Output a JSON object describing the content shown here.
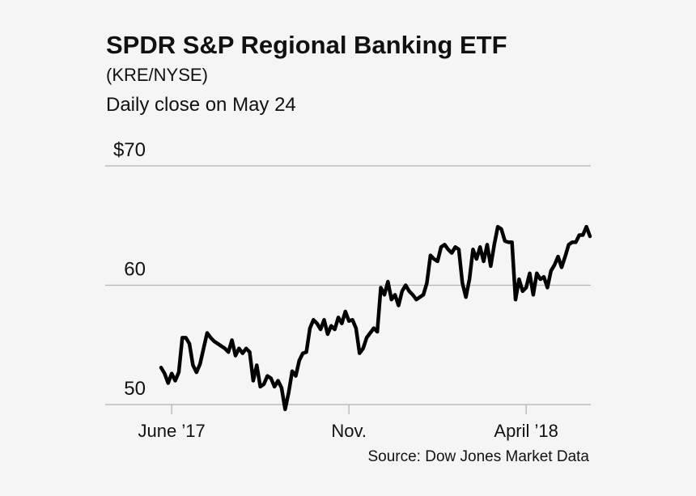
{
  "chart_data": {
    "type": "line",
    "title": "SPDR S&P Regional Banking ETF",
    "subtitle": "(KRE/NYSE)",
    "note": "Daily close on May 24",
    "source": "Source: Dow Jones Market Data",
    "color": "#000000",
    "grid": true,
    "ylim": [
      50,
      70
    ],
    "yticks": [
      50,
      60,
      {
        "value": 70,
        "label": "$70"
      }
    ],
    "categories": [
      null,
      null,
      null,
      "June ’17",
      null,
      null,
      null,
      null,
      null,
      null,
      null,
      null,
      null,
      null,
      null,
      null,
      null,
      null,
      null,
      null,
      null,
      null,
      null,
      null,
      null,
      null,
      null,
      null,
      null,
      null,
      null,
      null,
      null,
      null,
      null,
      null,
      null,
      null,
      null,
      null,
      null,
      null,
      null,
      null,
      null,
      null,
      null,
      null,
      null,
      null,
      null,
      null,
      null,
      "Nov.",
      null,
      null,
      null,
      null,
      null,
      null,
      null,
      null,
      null,
      null,
      null,
      null,
      null,
      null,
      null,
      null,
      null,
      null,
      null,
      null,
      null,
      null,
      null,
      null,
      null,
      null,
      null,
      null,
      null,
      null,
      null,
      null,
      null,
      null,
      null,
      null,
      null,
      null,
      null,
      null,
      null,
      null,
      null,
      null,
      null,
      null,
      null,
      null,
      null,
      "April ’18",
      null,
      null,
      null,
      null,
      null,
      null,
      null,
      null,
      null,
      null,
      null,
      null,
      null,
      null,
      null,
      null,
      null,
      null
    ],
    "values": [
      53.1,
      52.6,
      51.8,
      52.6,
      52.0,
      52.7,
      55.6,
      55.6,
      55.1,
      53.3,
      52.7,
      53.4,
      54.7,
      56.0,
      55.6,
      55.3,
      55.1,
      54.9,
      54.7,
      54.4,
      55.4,
      54.1,
      54.7,
      54.3,
      54.7,
      54.4,
      52.0,
      53.3,
      51.5,
      51.7,
      52.4,
      52.2,
      51.5,
      52.0,
      51.4,
      49.6,
      51.0,
      52.8,
      52.4,
      53.7,
      54.3,
      54.4,
      56.4,
      57.1,
      56.8,
      56.3,
      57.1,
      55.9,
      56.6,
      56.3,
      57.3,
      56.8,
      57.8,
      57.0,
      57.1,
      56.4,
      54.3,
      54.7,
      55.6,
      56.0,
      56.4,
      56.1,
      59.8,
      59.2,
      60.3,
      58.8,
      59.2,
      58.3,
      59.5,
      60.0,
      59.5,
      59.2,
      58.8,
      59.0,
      59.2,
      60.2,
      62.5,
      62.2,
      62.0,
      63.2,
      63.4,
      63.0,
      62.7,
      63.2,
      63.0,
      60.2,
      59.0,
      60.5,
      63.0,
      62.2,
      63.2,
      62.0,
      63.4,
      61.6,
      63.4,
      64.9,
      64.7,
      63.7,
      63.6,
      63.6,
      58.8,
      60.5,
      59.5,
      59.8,
      61.0,
      59.2,
      61.0,
      60.5,
      60.7,
      59.8,
      61.2,
      61.7,
      62.4,
      61.5,
      62.4,
      63.4,
      63.6,
      63.6,
      64.2,
      64.2,
      64.9,
      64.1
    ]
  }
}
